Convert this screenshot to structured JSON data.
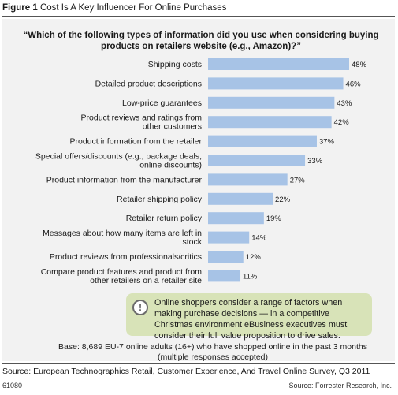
{
  "figure": {
    "number": "Figure 1",
    "title": "Cost Is A Key Influencer For Online Purchases"
  },
  "question": "“Which of the following types of information did you use when considering buying products on retailers website (e.g., Amazon)?”",
  "callout": {
    "icon": "exclamation-icon",
    "text": "Online shoppers consider a range of factors when making purchase decisions — in a competitive Christmas environment eBusiness executives must consider their full value proposition to drive sales."
  },
  "base_note": {
    "line1": "Base: 8,689 EU-7 online adults (16+) who have shopped online in the past 3 months",
    "line2": "(multiple responses accepted)"
  },
  "source": "Source: European Technographics Retail, Customer Experience, And Travel Online Survey, Q3 2011",
  "figure_id": "61080",
  "credit": "Source: Forrester Research, Inc.",
  "colors": {
    "bar": "#a7c3e6",
    "panel": "#f2f2f2",
    "callout": "#d8e3b8"
  },
  "chart_data": {
    "type": "bar",
    "orientation": "horizontal",
    "categories": [
      [
        "Shipping costs"
      ],
      [
        "Detailed product descriptions"
      ],
      [
        "Low-price guarantees"
      ],
      [
        "Product reviews and ratings from",
        "other customers"
      ],
      [
        "Product information from the retailer"
      ],
      [
        "Special offers/discounts (e.g., package deals,",
        "online discounts)"
      ],
      [
        "Product information from the manufacturer"
      ],
      [
        "Retailer shipping policy"
      ],
      [
        "Retailer return policy"
      ],
      [
        "Messages about how many items are left in",
        "stock"
      ],
      [
        "Product reviews from professionals/critics"
      ],
      [
        "Compare product features and product from",
        "other retailers on a retailer site"
      ]
    ],
    "values": [
      48,
      46,
      43,
      42,
      37,
      33,
      27,
      22,
      19,
      14,
      12,
      11
    ],
    "value_labels": [
      "48%",
      "46%",
      "43%",
      "42%",
      "37%",
      "33%",
      "27%",
      "22%",
      "19%",
      "14%",
      "12%",
      "11%"
    ],
    "xlim": [
      0,
      48
    ]
  }
}
